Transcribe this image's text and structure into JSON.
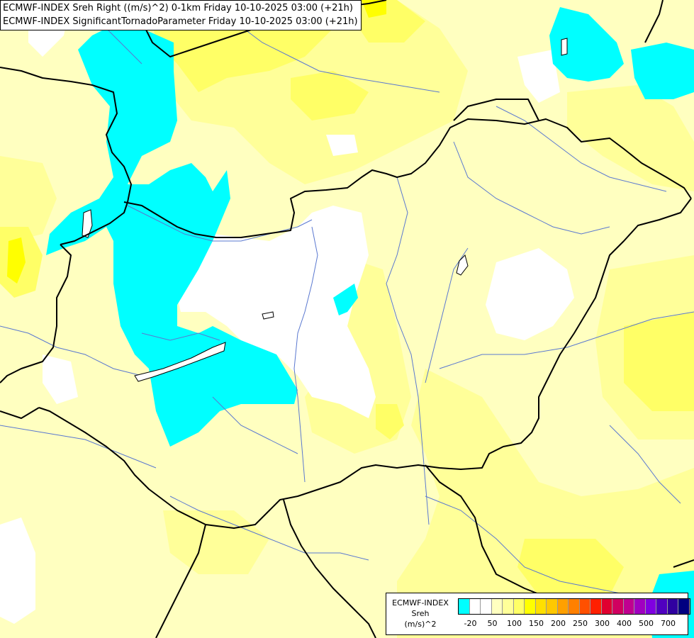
{
  "title": {
    "line1": "ECMWF-INDEX Sreh Right ((m/s)^2) 0-1km Friday 10-10-2025 03:00 (+21h)",
    "line2": "ECMWF-INDEX SignificantTornadoParameter Friday 10-10-2025 03:00 (+21h)"
  },
  "legend": {
    "model": "ECMWF-INDEX",
    "variable": "Sreh",
    "unit": "(m/s)^2",
    "colors": [
      "#00ffff",
      "#ffffff",
      "#ffffff",
      "#ffffc0",
      "#ffff99",
      "#ffff66",
      "#ffff00",
      "#ffe000",
      "#ffc800",
      "#ffa000",
      "#ff8000",
      "#ff5000",
      "#ff2000",
      "#e00030",
      "#d00060",
      "#c00090",
      "#a000c0",
      "#8000e0",
      "#5000c0",
      "#3000a0",
      "#000080"
    ],
    "ticks": [
      "-20",
      "50",
      "100",
      "150",
      "200",
      "250",
      "300",
      "400",
      "500",
      "700"
    ]
  },
  "map": {
    "field_colors": {
      "cyan": "#00ffff",
      "white": "#ffffff",
      "pale_yellow": "#ffffc0",
      "light_yellow": "#ffff99",
      "yellow": "#ffff66",
      "bright_yellow": "#ffff00",
      "river": "#5a78d0",
      "border": "#000000"
    }
  }
}
